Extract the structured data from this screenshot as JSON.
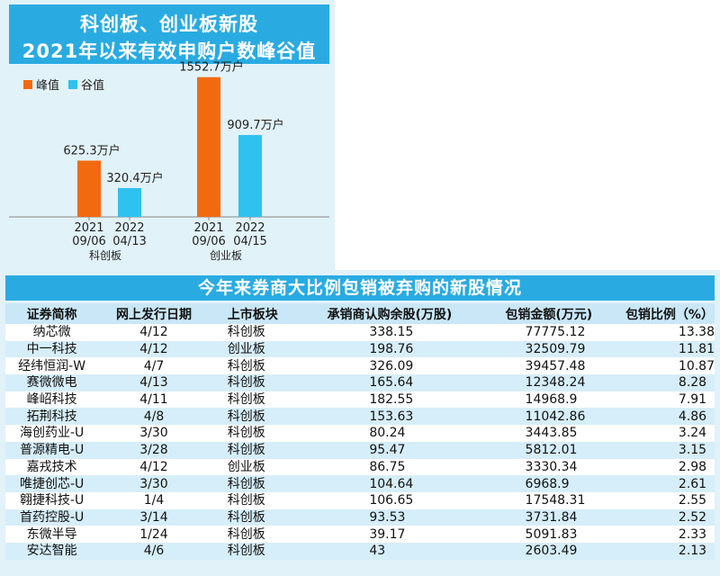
{
  "top": {
    "title_line1": "科创板、创业板新股",
    "title_line2": "2021年以来有效申购户数峰谷值"
  },
  "colors": {
    "peak": "#f26a10",
    "trough": "#2fc1ef",
    "title_bg": "#29abe2",
    "panel_bg": "#e1f2f9"
  },
  "chart_data": {
    "type": "bar",
    "legend": [
      "峰值",
      "谷值"
    ],
    "unit": "万户",
    "groups": [
      {
        "board": "科创板",
        "bars": [
          {
            "series": "峰值",
            "date_year": "2021",
            "date_md": "09/06",
            "value": 625.3,
            "label": "625.3万户"
          },
          {
            "series": "谷值",
            "date_year": "2022",
            "date_md": "04/13",
            "value": 320.4,
            "label": "320.4万户"
          }
        ]
      },
      {
        "board": "创业板",
        "bars": [
          {
            "series": "峰值",
            "date_year": "2021",
            "date_md": "09/06",
            "value": 1552.7,
            "label": "1552.7万户"
          },
          {
            "series": "谷值",
            "date_year": "2022",
            "date_md": "04/15",
            "value": 909.7,
            "label": "909.7万户"
          }
        ]
      }
    ]
  },
  "table": {
    "title": "今年来券商大比例包销被弃购的新股情况",
    "headers": [
      "证券简称",
      "网上发行日期",
      "上市板块",
      "承销商认购余股(万股)",
      "包销金额(万元)",
      "包销比例（%）"
    ],
    "rows": [
      [
        "纳芯微",
        "4/12",
        "科创板",
        "338.15",
        "77775.12",
        "13.38"
      ],
      [
        "中一科技",
        "4/12",
        "创业板",
        "198.76",
        "32509.79",
        "11.81"
      ],
      [
        "经纬恒润-W",
        "4/7",
        "科创板",
        "326.09",
        "39457.48",
        "10.87"
      ],
      [
        "赛微微电",
        "4/13",
        "科创板",
        "165.64",
        "12348.24",
        "8.28"
      ],
      [
        "峰岹科技",
        "4/11",
        "科创板",
        "182.55",
        "14968.9",
        "7.91"
      ],
      [
        "拓荆科技",
        "4/8",
        "科创板",
        "153.63",
        "11042.86",
        "4.86"
      ],
      [
        "海创药业-U",
        "3/30",
        "科创板",
        "80.24",
        "3443.85",
        "3.24"
      ],
      [
        "普源精电-U",
        "3/28",
        "科创板",
        "95.47",
        "5812.01",
        "3.15"
      ],
      [
        "嘉戎技术",
        "4/12",
        "创业板",
        "86.75",
        "3330.34",
        "2.98"
      ],
      [
        "唯捷创芯-U",
        "3/30",
        "科创板",
        "104.64",
        "6968.9",
        "2.61"
      ],
      [
        "翱捷科技-U",
        "1/4",
        "科创板",
        "106.65",
        "17548.31",
        "2.55"
      ],
      [
        "首药控股-U",
        "3/14",
        "科创板",
        "93.53",
        "3731.84",
        "2.52"
      ],
      [
        "东微半导",
        "1/24",
        "科创板",
        "39.17",
        "5091.83",
        "2.33"
      ],
      [
        "安达智能",
        "4/6",
        "科创板",
        "43",
        "2603.49",
        "2.13"
      ]
    ]
  }
}
